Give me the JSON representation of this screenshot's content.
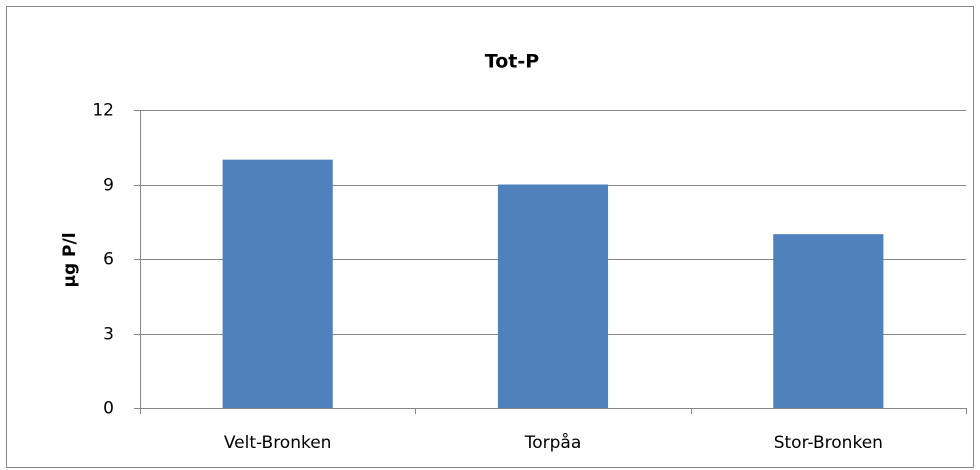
{
  "chart_data": {
    "type": "bar",
    "title": "Tot-P",
    "y_label": "µg P/l",
    "categories": [
      "Velt-Bronken",
      "Torpåa",
      "Stor-Bronken"
    ],
    "values": [
      10,
      9,
      7
    ],
    "color": "#4f81bd",
    "ylim": [
      0,
      12
    ],
    "yticks": [
      0,
      3,
      6,
      9,
      12
    ],
    "grid": true
  }
}
